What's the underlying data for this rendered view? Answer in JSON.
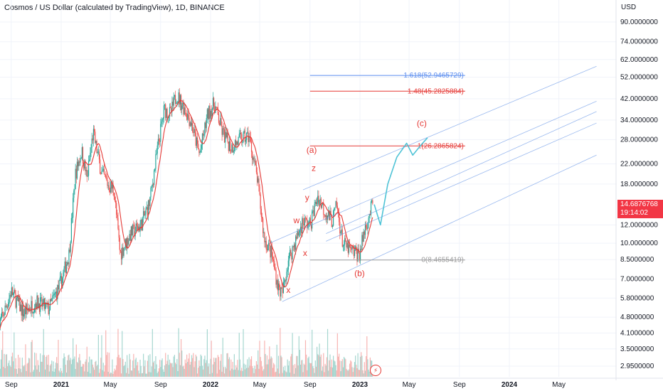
{
  "header": {
    "title": "Cosmos / US Dollar (calculated by TradingView), 1D, BINANCE",
    "axis_currency": "USD"
  },
  "last_price": {
    "value": "14.6876768",
    "countdown": "19:14:02"
  },
  "colors": {
    "candle_up": "#26a69a",
    "candle_down": "#ef5350",
    "ma_line": "#e53935",
    "fib_top": "#5b8def",
    "fib_red": "#e53935",
    "fib_zero": "#9e9e9e",
    "channel": "#6f9be8",
    "projection": "#4fc3d6",
    "price_tag": "#f23645"
  },
  "chart_data": {
    "type": "line",
    "y_scale": "log",
    "y_ticks": [
      "90.0000000",
      "74.0000000",
      "62.0000000",
      "52.0000000",
      "42.0000000",
      "34.0000000",
      "28.0000000",
      "22.0000000",
      "18.0000000",
      "14.6876768",
      "12.0000000",
      "10.0000000",
      "8.5000000",
      "7.0000000",
      "5.8000000",
      "4.8000000",
      "4.1000000",
      "3.5000000",
      "2.9500000"
    ],
    "x_ticks": [
      {
        "label": "Sep",
        "bold": false
      },
      {
        "label": "2021",
        "bold": true
      },
      {
        "label": "May",
        "bold": false
      },
      {
        "label": "Sep",
        "bold": false
      },
      {
        "label": "2022",
        "bold": true
      },
      {
        "label": "May",
        "bold": false
      },
      {
        "label": "Sep",
        "bold": false
      },
      {
        "label": "2023",
        "bold": true
      },
      {
        "label": "May",
        "bold": false
      },
      {
        "label": "Sep",
        "bold": false
      },
      {
        "label": "2024",
        "bold": true
      },
      {
        "label": "May",
        "bold": false
      }
    ],
    "fib_levels": [
      {
        "label": "1.618(52.9465729)",
        "value": 52.9465729
      },
      {
        "label": "1.48(45.2825884)",
        "value": 45.2825884
      },
      {
        "label": "1(26.2865824)",
        "value": 26.2865824
      },
      {
        "label": "0(8.4655419)",
        "value": 8.4655419
      }
    ],
    "wave_labels": [
      "(a)",
      "z",
      "y",
      "w",
      "x",
      "x",
      "(b)",
      "(c)"
    ],
    "price_path": [
      [
        "2020-08-01",
        4.3
      ],
      [
        "2020-09-01",
        6.2
      ],
      [
        "2020-10-01",
        5.0
      ],
      [
        "2020-11-01",
        5.6
      ],
      [
        "2020-12-01",
        5.2
      ],
      [
        "2021-01-01",
        6.8
      ],
      [
        "2021-01-20",
        9.0
      ],
      [
        "2021-02-05",
        20.0
      ],
      [
        "2021-02-20",
        25.0
      ],
      [
        "2021-03-05",
        19.0
      ],
      [
        "2021-03-20",
        30.0
      ],
      [
        "2021-04-10",
        20.0
      ],
      [
        "2021-04-25",
        18.0
      ],
      [
        "2021-05-10",
        17.0
      ],
      [
        "2021-05-25",
        9.0
      ],
      [
        "2021-06-20",
        11.0
      ],
      [
        "2021-07-15",
        12.0
      ],
      [
        "2021-08-05",
        15.0
      ],
      [
        "2021-08-25",
        26.0
      ],
      [
        "2021-09-10",
        38.0
      ],
      [
        "2021-09-25",
        36.0
      ],
      [
        "2021-10-10",
        44.0
      ],
      [
        "2021-10-30",
        38.0
      ],
      [
        "2021-11-15",
        33.0
      ],
      [
        "2021-12-05",
        24.0
      ],
      [
        "2021-12-25",
        36.0
      ],
      [
        "2022-01-10",
        40.0
      ],
      [
        "2022-01-30",
        30.0
      ],
      [
        "2022-02-20",
        26.0
      ],
      [
        "2022-03-15",
        28.0
      ],
      [
        "2022-04-05",
        29.0
      ],
      [
        "2022-04-25",
        19.0
      ],
      [
        "2022-05-12",
        10.5
      ],
      [
        "2022-05-30",
        9.0
      ],
      [
        "2022-06-15",
        6.5
      ],
      [
        "2022-06-25",
        6.0
      ],
      [
        "2022-07-10",
        8.5
      ],
      [
        "2022-07-30",
        10.5
      ],
      [
        "2022-08-15",
        12.5
      ],
      [
        "2022-09-01",
        12.0
      ],
      [
        "2022-09-20",
        16.0
      ],
      [
        "2022-10-05",
        14.0
      ],
      [
        "2022-10-25",
        12.5
      ],
      [
        "2022-11-05",
        14.5
      ],
      [
        "2022-11-20",
        10.0
      ],
      [
        "2022-12-10",
        9.2
      ],
      [
        "2022-12-31",
        9.0
      ],
      [
        "2023-01-15",
        12.0
      ],
      [
        "2023-02-01",
        14.7
      ]
    ],
    "projection_path": [
      [
        "2023-02-05",
        14.7
      ],
      [
        "2023-02-20",
        12.0
      ],
      [
        "2023-03-10",
        18.0
      ],
      [
        "2023-04-01",
        23.5
      ],
      [
        "2023-04-25",
        27.0
      ],
      [
        "2023-05-10",
        24.0
      ],
      [
        "2023-05-30",
        26.5
      ],
      [
        "2023-06-15",
        28.5
      ]
    ]
  }
}
